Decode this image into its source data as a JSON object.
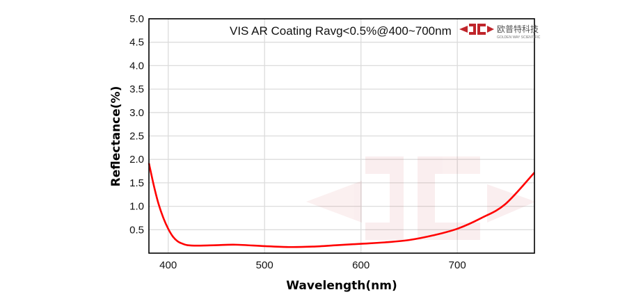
{
  "chart_data": {
    "type": "line",
    "title": "VIS AR Coating Ravg<0.5%@400~700nm",
    "xlabel": "Wavelength(nm)",
    "ylabel": "Reflectance(%)",
    "xlim": [
      380,
      780
    ],
    "ylim": [
      0,
      5.0
    ],
    "xticks": [
      "400",
      "500",
      "600",
      "700"
    ],
    "yticks": [
      "0.5",
      "1.0",
      "1.5",
      "2.0",
      "2.5",
      "3.0",
      "3.5",
      "4.0",
      "4.5",
      "5.0"
    ],
    "grid": true,
    "line_color": "#ff0000",
    "series": [
      {
        "x": [
          380,
          385,
          390,
          395,
          400,
          405,
          410,
          415,
          420,
          430,
          450,
          470,
          500,
          525,
          550,
          575,
          600,
          625,
          650,
          675,
          700,
          725,
          750,
          780
        ],
        "y": [
          1.92,
          1.45,
          1.05,
          0.75,
          0.52,
          0.35,
          0.25,
          0.2,
          0.17,
          0.16,
          0.17,
          0.18,
          0.15,
          0.13,
          0.14,
          0.17,
          0.2,
          0.23,
          0.28,
          0.38,
          0.52,
          0.75,
          1.05,
          1.72
        ]
      }
    ]
  },
  "logo": {
    "text_cn": "欧普特科技",
    "text_en": "GOLDEN WAY SCIENTIFIC",
    "color": "#c0252b"
  }
}
